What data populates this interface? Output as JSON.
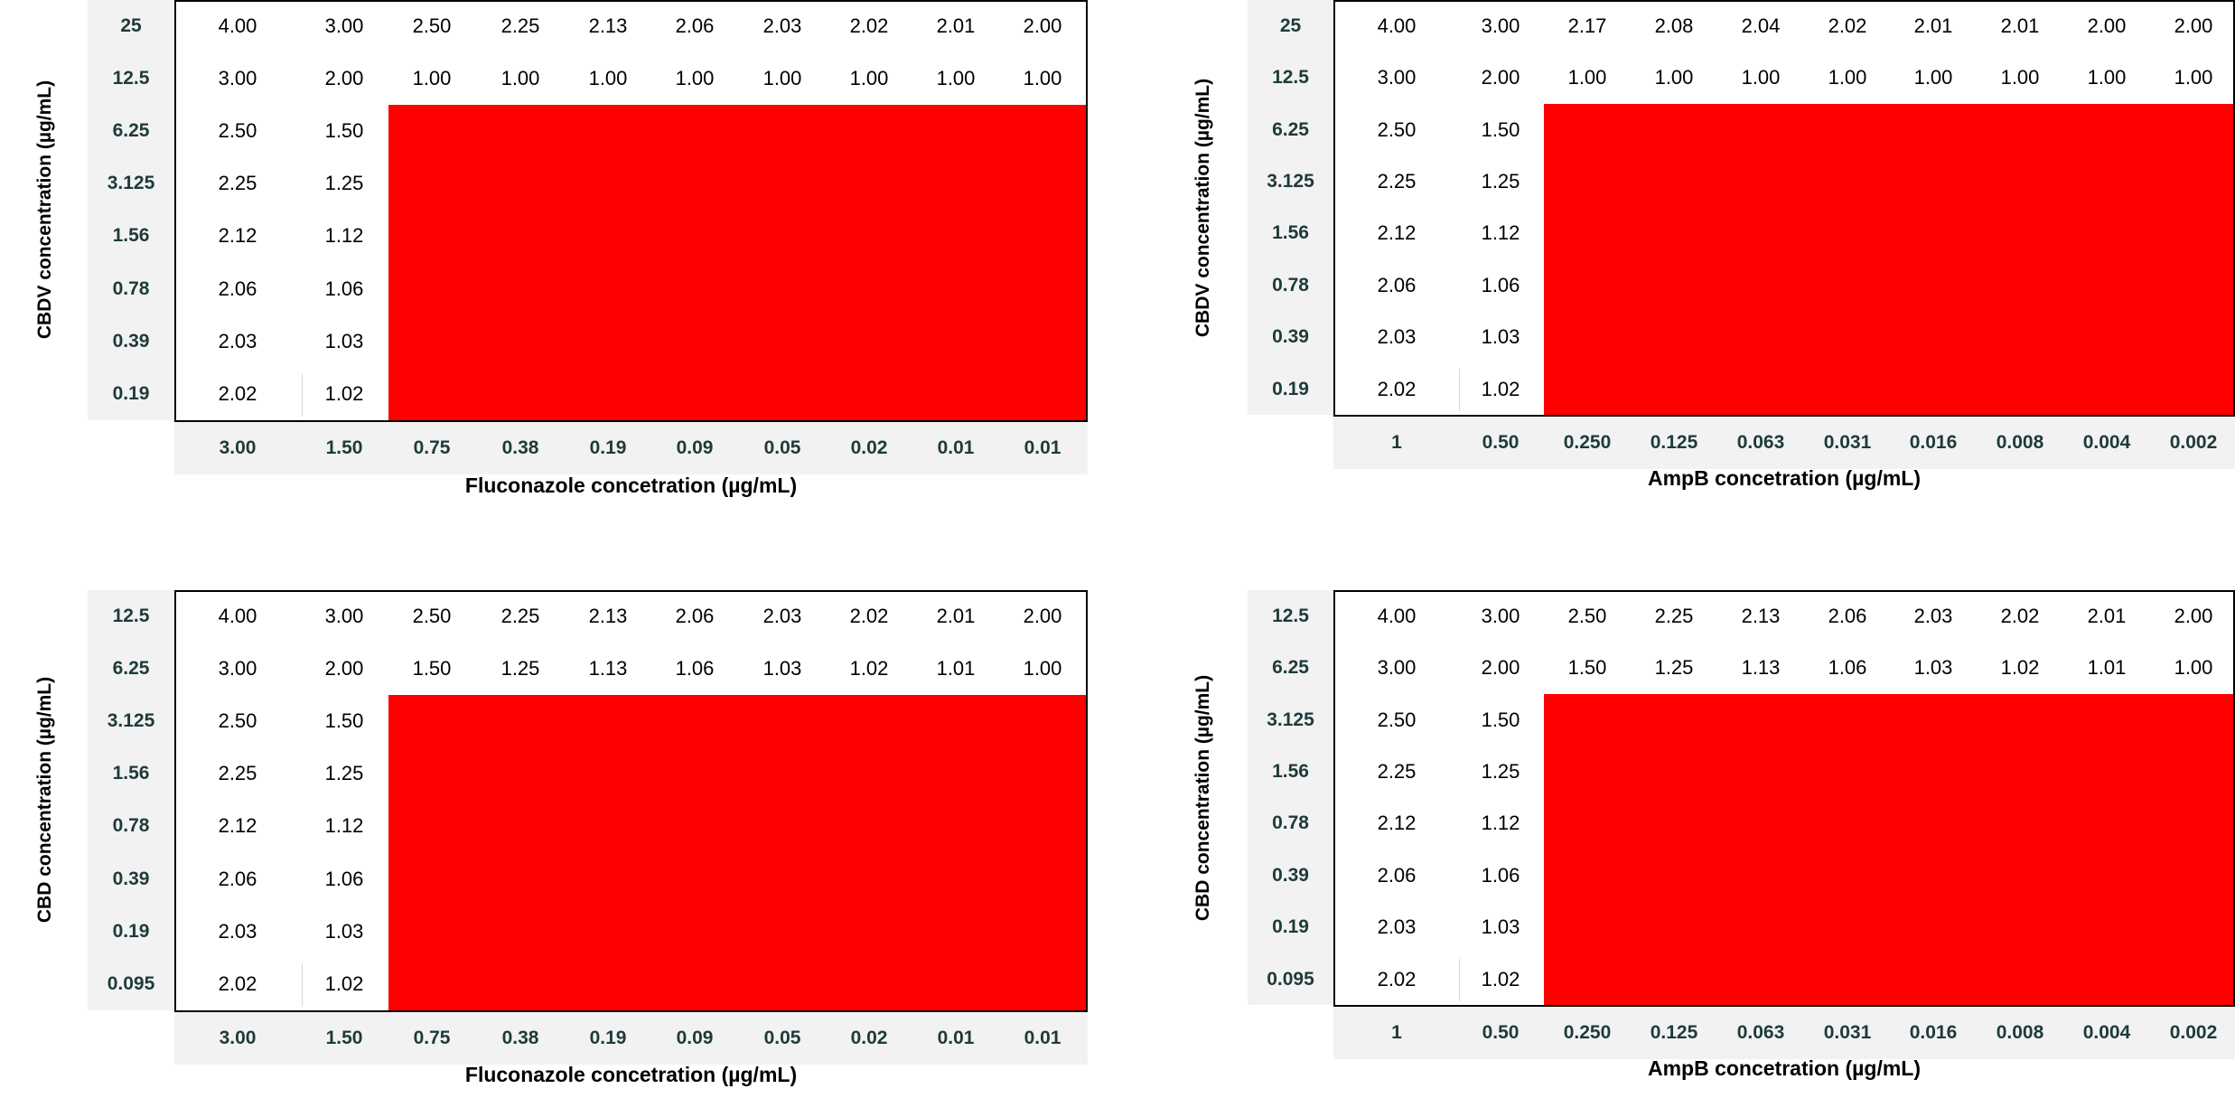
{
  "chart_data": [
    {
      "type": "table",
      "ylabel": "CBDV concentration (µg/mL)",
      "xlabel": "Fluconazole concetration (µg/mL)",
      "row_headers": [
        "25",
        "12.5",
        "6.25",
        "3.125",
        "1.56",
        "0.78",
        "0.39",
        "0.19"
      ],
      "col_headers": [
        "3.00",
        "1.50",
        "0.75",
        "0.38",
        "0.19",
        "0.09",
        "0.05",
        "0.02",
        "0.01",
        "0.01"
      ],
      "cells": [
        [
          "4.00",
          "3.00",
          "2.50",
          "2.25",
          "2.13",
          "2.06",
          "2.03",
          "2.02",
          "2.01",
          "2.00"
        ],
        [
          "3.00",
          "2.00",
          "1.00",
          "1.00",
          "1.00",
          "1.00",
          "1.00",
          "1.00",
          "1.00",
          "1.00"
        ],
        [
          "2.50",
          "1.50"
        ],
        [
          "2.25",
          "1.25"
        ],
        [
          "2.12",
          "1.12"
        ],
        [
          "2.06",
          "1.06"
        ],
        [
          "2.03",
          "1.03"
        ],
        [
          "2.02",
          "1.02"
        ]
      ],
      "highlight": {
        "color": "#ff0000",
        "rows_from": 2,
        "cols_from": 2
      }
    },
    {
      "type": "table",
      "ylabel": "CBDV concentration (µg/mL)",
      "xlabel": "AmpB concetration (µg/mL)",
      "row_headers": [
        "25",
        "12.5",
        "6.25",
        "3.125",
        "1.56",
        "0.78",
        "0.39",
        "0.19"
      ],
      "col_headers": [
        "1",
        "0.50",
        "0.250",
        "0.125",
        "0.063",
        "0.031",
        "0.016",
        "0.008",
        "0.004",
        "0.002"
      ],
      "cells": [
        [
          "4.00",
          "3.00",
          "2.17",
          "2.08",
          "2.04",
          "2.02",
          "2.01",
          "2.01",
          "2.00",
          "2.00"
        ],
        [
          "3.00",
          "2.00",
          "1.00",
          "1.00",
          "1.00",
          "1.00",
          "1.00",
          "1.00",
          "1.00",
          "1.00"
        ],
        [
          "2.50",
          "1.50"
        ],
        [
          "2.25",
          "1.25"
        ],
        [
          "2.12",
          "1.12"
        ],
        [
          "2.06",
          "1.06"
        ],
        [
          "2.03",
          "1.03"
        ],
        [
          "2.02",
          "1.02"
        ]
      ],
      "highlight": {
        "color": "#ff0000",
        "rows_from": 2,
        "cols_from": 2
      }
    },
    {
      "type": "table",
      "ylabel": "CBD concentration (µg/mL)",
      "xlabel": "Fluconazole concetration (µg/mL)",
      "row_headers": [
        "12.5",
        "6.25",
        "3.125",
        "1.56",
        "0.78",
        "0.39",
        "0.19",
        "0.095"
      ],
      "col_headers": [
        "3.00",
        "1.50",
        "0.75",
        "0.38",
        "0.19",
        "0.09",
        "0.05",
        "0.02",
        "0.01",
        "0.01"
      ],
      "cells": [
        [
          "4.00",
          "3.00",
          "2.50",
          "2.25",
          "2.13",
          "2.06",
          "2.03",
          "2.02",
          "2.01",
          "2.00"
        ],
        [
          "3.00",
          "2.00",
          "1.50",
          "1.25",
          "1.13",
          "1.06",
          "1.03",
          "1.02",
          "1.01",
          "1.00"
        ],
        [
          "2.50",
          "1.50"
        ],
        [
          "2.25",
          "1.25"
        ],
        [
          "2.12",
          "1.12"
        ],
        [
          "2.06",
          "1.06"
        ],
        [
          "2.03",
          "1.03"
        ],
        [
          "2.02",
          "1.02"
        ]
      ],
      "highlight": {
        "color": "#ff0000",
        "rows_from": 2,
        "cols_from": 2
      }
    },
    {
      "type": "table",
      "ylabel": "CBD concentration (µg/mL)",
      "xlabel": "AmpB concetration (µg/mL)",
      "row_headers": [
        "12.5",
        "6.25",
        "3.125",
        "1.56",
        "0.78",
        "0.39",
        "0.19",
        "0.095"
      ],
      "col_headers": [
        "1",
        "0.50",
        "0.250",
        "0.125",
        "0.063",
        "0.031",
        "0.016",
        "0.008",
        "0.004",
        "0.002"
      ],
      "cells": [
        [
          "4.00",
          "3.00",
          "2.50",
          "2.25",
          "2.13",
          "2.06",
          "2.03",
          "2.02",
          "2.01",
          "2.00"
        ],
        [
          "3.00",
          "2.00",
          "1.50",
          "1.25",
          "1.13",
          "1.06",
          "1.03",
          "1.02",
          "1.01",
          "1.00"
        ],
        [
          "2.50",
          "1.50"
        ],
        [
          "2.25",
          "1.25"
        ],
        [
          "2.12",
          "1.12"
        ],
        [
          "2.06",
          "1.06"
        ],
        [
          "2.03",
          "1.03"
        ],
        [
          "2.02",
          "1.02"
        ]
      ],
      "highlight": {
        "color": "#ff0000",
        "rows_from": 2,
        "cols_from": 2
      }
    }
  ]
}
